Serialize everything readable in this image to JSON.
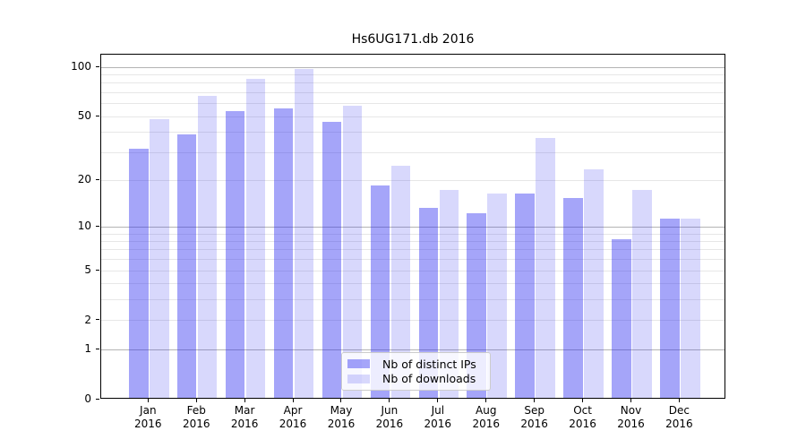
{
  "chart_data": {
    "type": "bar",
    "title": "Hs6UG171.db 2016",
    "categories": [
      "Jan",
      "Feb",
      "Mar",
      "Apr",
      "May",
      "Jun",
      "Jul",
      "Aug",
      "Sep",
      "Oct",
      "Nov",
      "Dec"
    ],
    "year": "2016",
    "series": [
      {
        "name": "Nb of distinct IPs",
        "color": "rgba(40,40,240,0.42)",
        "solid_color": "#a6a6f5",
        "values": [
          31,
          38,
          53,
          55,
          45,
          18,
          13,
          12,
          16,
          15,
          8,
          11
        ]
      },
      {
        "name": "Nb of downloads",
        "color": "rgba(40,40,240,0.18)",
        "solid_color": "#d8d8f7",
        "values": [
          47,
          65,
          83,
          95,
          57,
          24,
          17,
          16,
          36,
          23,
          17,
          11
        ]
      }
    ],
    "yticks": [
      0,
      1,
      2,
      5,
      10,
      20,
      50,
      100
    ],
    "scale": "log10(1+x)",
    "ylim": [
      0,
      119
    ],
    "grid": {
      "major_lines": [
        1,
        10,
        100
      ],
      "minor_lines": [
        2,
        3,
        4,
        5,
        6,
        7,
        8,
        9,
        20,
        30,
        40,
        50,
        60,
        70,
        80,
        90
      ]
    },
    "legend_position": "lower-center",
    "xlabel": "",
    "ylabel": ""
  }
}
